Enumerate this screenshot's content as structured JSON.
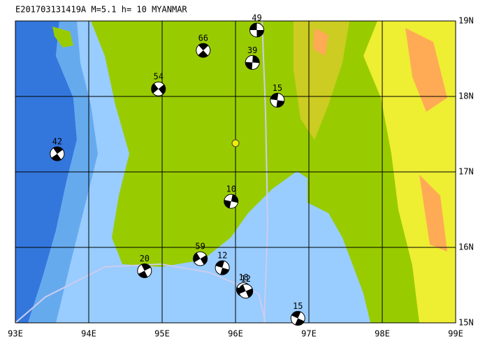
{
  "title": "E201703131419A M=5.1 h= 10 MYANMAR",
  "lonlim": [
    93,
    99
  ],
  "latlim": [
    15,
    19
  ],
  "lon_ticks": [
    {
      "value": 93,
      "label": "93E"
    },
    {
      "value": 94,
      "label": "94E"
    },
    {
      "value": 95,
      "label": "95E"
    },
    {
      "value": 96,
      "label": "96E"
    },
    {
      "value": 97,
      "label": "97E"
    },
    {
      "value": 98,
      "label": "98E"
    },
    {
      "value": 99,
      "label": "99E"
    }
  ],
  "lat_ticks": [
    {
      "value": 19,
      "label": "19N"
    },
    {
      "value": 18,
      "label": "18N"
    },
    {
      "value": 17,
      "label": "17N"
    },
    {
      "value": 16,
      "label": "16N"
    },
    {
      "value": 15,
      "label": "15N"
    }
  ],
  "epicenter": {
    "lon": 96.0,
    "lat": 17.38
  },
  "events": [
    {
      "depth": 49,
      "lon": 96.29,
      "lat": 18.88
    },
    {
      "depth": 66,
      "lon": 95.56,
      "lat": 18.61
    },
    {
      "depth": 39,
      "lon": 96.23,
      "lat": 18.45
    },
    {
      "depth": 54,
      "lon": 94.95,
      "lat": 18.1
    },
    {
      "depth": 15,
      "lon": 96.57,
      "lat": 17.95
    },
    {
      "depth": 42,
      "lon": 93.57,
      "lat": 17.24
    },
    {
      "depth": 10,
      "lon": 95.94,
      "lat": 16.61
    },
    {
      "depth": 59,
      "lon": 95.52,
      "lat": 15.85
    },
    {
      "depth": 12,
      "lon": 95.82,
      "lat": 15.73
    },
    {
      "depth": 20,
      "lon": 94.76,
      "lat": 15.69
    },
    {
      "depth": 18,
      "lon": 96.11,
      "lat": 15.44
    },
    {
      "depth": 12,
      "lon": 96.14,
      "lat": 15.42
    },
    {
      "depth": 15,
      "lon": 96.85,
      "lat": 15.06
    }
  ]
}
